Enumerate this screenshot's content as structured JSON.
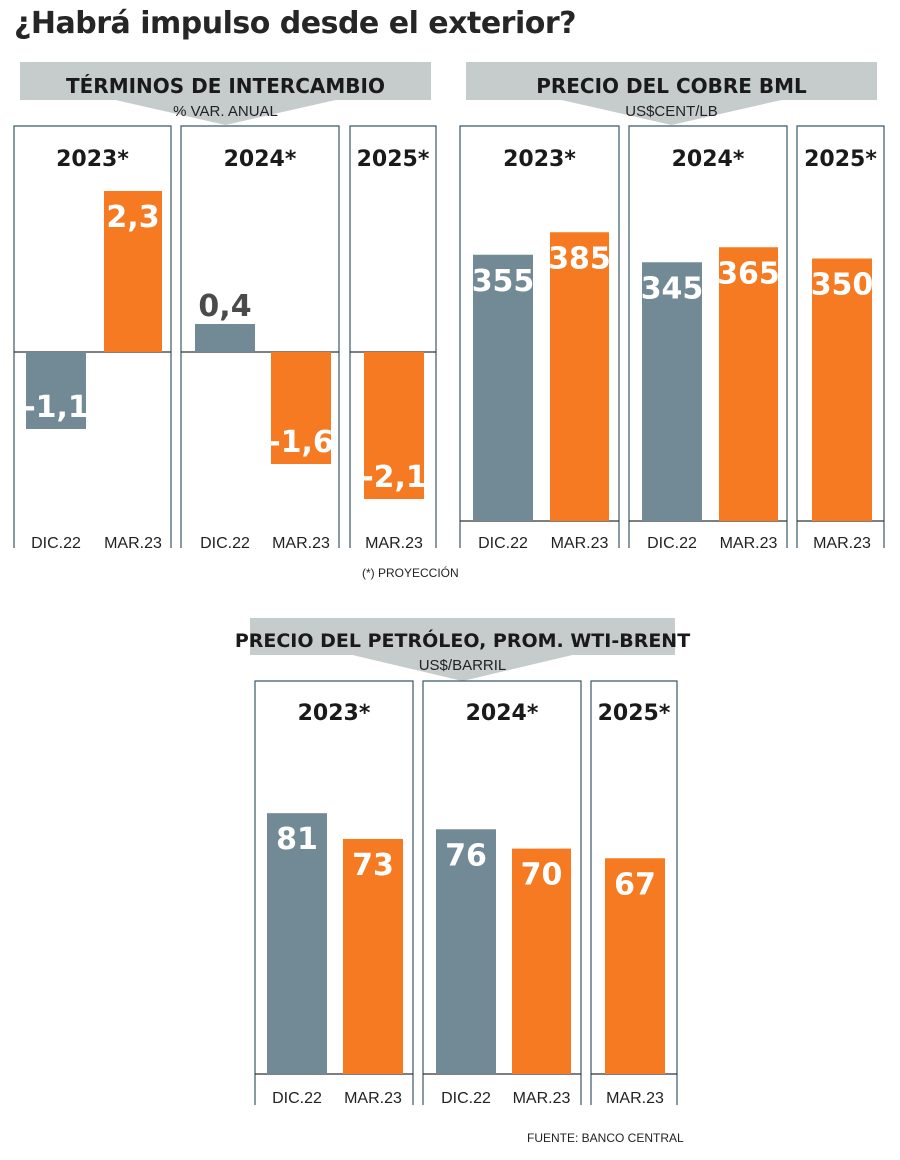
{
  "title": "¿Habrá impulso desde el exterior?",
  "footnote": "(*) PROYECCIÓN",
  "source": "FUENTE: BANCO CENTRAL",
  "colors": {
    "dic22": "#728a95",
    "mar23": "#f57a22",
    "banner": "#c6cccc",
    "frame": "#3b5866"
  },
  "chart_data": [
    {
      "type": "bar",
      "title": "TÉRMINOS DE INTERCAMBIO",
      "subtitle": "% VAR. ANUAL",
      "groups": [
        {
          "label": "2023*",
          "bars": [
            {
              "category": "DIC.22",
              "value": -1.1,
              "display": "-1,1"
            },
            {
              "category": "MAR.23",
              "value": 2.3,
              "display": "2,3"
            }
          ]
        },
        {
          "label": "2024*",
          "bars": [
            {
              "category": "DIC.22",
              "value": 0.4,
              "display": "0,4"
            },
            {
              "category": "MAR.23",
              "value": -1.6,
              "display": "-1,6"
            }
          ]
        },
        {
          "label": "2025*",
          "bars": [
            {
              "category": "MAR.23",
              "value": -2.1,
              "display": "-2,1"
            }
          ]
        }
      ]
    },
    {
      "type": "bar",
      "title": "PRECIO DEL COBRE BML",
      "subtitle": "US$CENT/LB",
      "groups": [
        {
          "label": "2023*",
          "bars": [
            {
              "category": "DIC.22",
              "value": 355,
              "display": "355"
            },
            {
              "category": "MAR.23",
              "value": 385,
              "display": "385"
            }
          ]
        },
        {
          "label": "2024*",
          "bars": [
            {
              "category": "DIC.22",
              "value": 345,
              "display": "345"
            },
            {
              "category": "MAR.23",
              "value": 365,
              "display": "365"
            }
          ]
        },
        {
          "label": "2025*",
          "bars": [
            {
              "category": "MAR.23",
              "value": 350,
              "display": "350"
            }
          ]
        }
      ]
    },
    {
      "type": "bar",
      "title": "PRECIO DEL PETRÓLEO, PROM. WTI-BRENT",
      "subtitle": "US$/BARRIL",
      "groups": [
        {
          "label": "2023*",
          "bars": [
            {
              "category": "DIC.22",
              "value": 81,
              "display": "81"
            },
            {
              "category": "MAR.23",
              "value": 73,
              "display": "73"
            }
          ]
        },
        {
          "label": "2024*",
          "bars": [
            {
              "category": "DIC.22",
              "value": 76,
              "display": "76"
            },
            {
              "category": "MAR.23",
              "value": 70,
              "display": "70"
            }
          ]
        },
        {
          "label": "2025*",
          "bars": [
            {
              "category": "MAR.23",
              "value": 67,
              "display": "67"
            }
          ]
        }
      ]
    }
  ]
}
